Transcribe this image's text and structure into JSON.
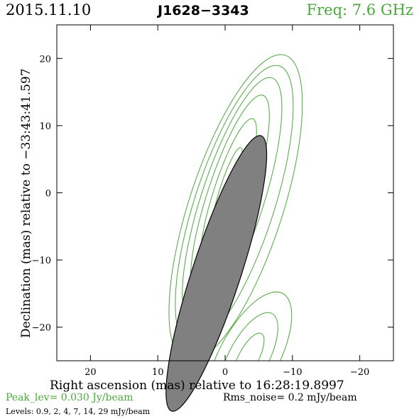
{
  "header": {
    "date": "2015.11.10",
    "source": "J1628−3343",
    "frequency": "Freq: 7.6 GHz"
  },
  "footer": {
    "peak": "Peak_lev=  0.030 Jy/beam",
    "rms": "Rms_noise=   0.2 mJy/beam",
    "levels": "Levels: 0.9,   2,   4,   7,  14,  29 mJy/beam"
  },
  "colors": {
    "contour": "#4aa83a",
    "beam_fill": "#808080",
    "accent_text": "#4aa83a"
  },
  "chart_data": {
    "type": "contour",
    "title": "",
    "xlabel": "Right ascension (mas) relative to 16:28:19.8997",
    "ylabel": "Declination (mas) relative to −33:43:41.597",
    "xlim": [
      25,
      -25
    ],
    "ylim": [
      -25,
      25
    ],
    "xticks": [
      20,
      10,
      0,
      -10,
      -20
    ],
    "yticks": [
      20,
      10,
      0,
      -10,
      -20
    ],
    "xtick_labels": [
      "20",
      "10",
      "0",
      "−10",
      "−20"
    ],
    "ytick_labels": [
      "20",
      "10",
      "0",
      "−10",
      "−20"
    ],
    "peak_jy_per_beam": 0.03,
    "rms_noise_mjy_per_beam": 0.2,
    "contour_levels_mjy_per_beam": [
      0.9,
      2,
      4,
      7,
      14,
      29
    ],
    "beam": {
      "x": 1.3,
      "y": -12,
      "major": 21.5,
      "minor": 3.6,
      "pa_deg": 18
    },
    "core_component": {
      "x": -0.3,
      "y": 0.5,
      "major_axis_angle_deg": 18
    }
  }
}
